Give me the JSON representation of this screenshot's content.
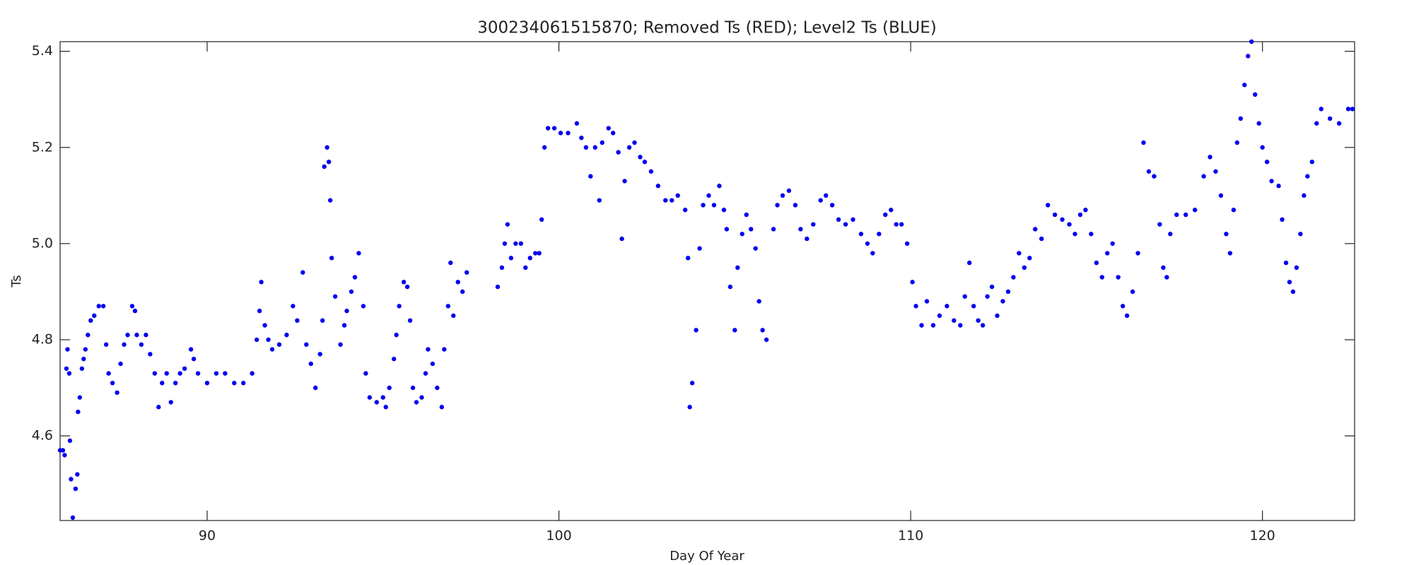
{
  "chart_data": {
    "type": "scatter",
    "title": "300234061515870; Removed Ts (RED); Level2 Ts (BLUE)",
    "x_label": "Day Of Year",
    "y_label": "Ts",
    "color": "#0000ee",
    "xlim": [
      85.82,
      122.62
    ],
    "ylim": [
      4.424,
      5.42
    ],
    "xticks": [
      90,
      100,
      110,
      120
    ],
    "yticks": [
      4.6,
      4.8,
      {
        "value": 5,
        "label": "5.0"
      },
      5.2,
      5.4
    ],
    "x": [
      85.82,
      85.9,
      85.95,
      86.0,
      86.03,
      86.08,
      86.1,
      86.13,
      86.18,
      86.26,
      86.31,
      86.33,
      86.38,
      86.44,
      86.49,
      86.54,
      86.61,
      86.69,
      86.79,
      86.92,
      87.05,
      87.13,
      87.2,
      87.31,
      87.44,
      87.54,
      87.64,
      87.74,
      87.87,
      87.95,
      88.0,
      88.13,
      88.26,
      88.38,
      88.51,
      88.62,
      88.72,
      88.85,
      88.97,
      89.1,
      89.23,
      89.36,
      89.54,
      89.62,
      89.74,
      90.0,
      90.26,
      90.51,
      90.77,
      91.03,
      91.28,
      91.41,
      91.49,
      91.54,
      91.64,
      91.74,
      91.85,
      92.05,
      92.26,
      92.44,
      92.56,
      92.72,
      92.82,
      92.95,
      93.08,
      93.21,
      93.28,
      93.33,
      93.41,
      93.46,
      93.5,
      93.54,
      93.64,
      93.79,
      93.9,
      93.97,
      94.1,
      94.2,
      94.31,
      94.44,
      94.51,
      94.62,
      94.82,
      95.0,
      95.08,
      95.18,
      95.31,
      95.38,
      95.46,
      95.59,
      95.69,
      95.77,
      95.85,
      95.95,
      96.1,
      96.21,
      96.28,
      96.41,
      96.54,
      96.67,
      96.74,
      96.85,
      96.92,
      97.0,
      97.13,
      97.26,
      97.38,
      98.26,
      98.38,
      98.46,
      98.54,
      98.64,
      98.77,
      98.92,
      99.05,
      99.18,
      99.33,
      99.44,
      99.51,
      99.59,
      99.69,
      99.87,
      100.05,
      100.26,
      100.51,
      100.64,
      100.77,
      100.9,
      101.03,
      101.15,
      101.23,
      101.41,
      101.54,
      101.69,
      101.79,
      101.87,
      102.0,
      102.15,
      102.31,
      102.44,
      102.62,
      102.82,
      103.03,
      103.21,
      103.38,
      103.59,
      103.67,
      103.72,
      103.79,
      103.9,
      104.0,
      104.1,
      104.26,
      104.41,
      104.56,
      104.69,
      104.77,
      104.87,
      105.0,
      105.08,
      105.21,
      105.33,
      105.46,
      105.59,
      105.69,
      105.79,
      105.9,
      106.1,
      106.21,
      106.36,
      106.54,
      106.72,
      106.87,
      107.05,
      107.23,
      107.44,
      107.59,
      107.77,
      107.95,
      108.15,
      108.36,
      108.59,
      108.77,
      108.92,
      109.1,
      109.28,
      109.44,
      109.59,
      109.74,
      109.9,
      110.05,
      110.15,
      110.31,
      110.46,
      110.64,
      110.82,
      111.03,
      111.23,
      111.41,
      111.54,
      111.67,
      111.79,
      111.92,
      112.05,
      112.18,
      112.31,
      112.46,
      112.62,
      112.77,
      112.92,
      113.08,
      113.23,
      113.38,
      113.54,
      113.72,
      113.9,
      114.1,
      114.31,
      114.51,
      114.67,
      114.82,
      114.97,
      115.13,
      115.28,
      115.44,
      115.59,
      115.74,
      115.9,
      116.03,
      116.15,
      116.31,
      116.46,
      116.62,
      116.77,
      116.92,
      117.08,
      117.18,
      117.28,
      117.38,
      117.56,
      117.82,
      118.08,
      118.33,
      118.51,
      118.67,
      118.82,
      118.97,
      119.08,
      119.18,
      119.28,
      119.38,
      119.49,
      119.59,
      119.69,
      119.79,
      119.9,
      120.0,
      120.13,
      120.26,
      120.46,
      120.56,
      120.67,
      120.77,
      120.87,
      120.97,
      121.08,
      121.18,
      121.28,
      121.41,
      121.54,
      121.67,
      121.92,
      122.18,
      122.44,
      122.56
    ],
    "y": [
      4.57,
      4.57,
      4.56,
      4.74,
      4.78,
      4.73,
      4.59,
      4.51,
      4.43,
      4.49,
      4.52,
      4.65,
      4.68,
      4.74,
      4.76,
      4.78,
      4.81,
      4.84,
      4.85,
      4.87,
      4.87,
      4.79,
      4.73,
      4.71,
      4.69,
      4.75,
      4.79,
      4.81,
      4.87,
      4.86,
      4.81,
      4.79,
      4.81,
      4.77,
      4.73,
      4.66,
      4.71,
      4.73,
      4.67,
      4.71,
      4.73,
      4.74,
      4.78,
      4.76,
      4.73,
      4.71,
      4.73,
      4.73,
      4.71,
      4.71,
      4.73,
      4.8,
      4.86,
      4.92,
      4.83,
      4.8,
      4.78,
      4.79,
      4.81,
      4.87,
      4.84,
      4.94,
      4.79,
      4.75,
      4.7,
      4.77,
      4.84,
      5.16,
      5.2,
      5.17,
      5.09,
      4.97,
      4.89,
      4.79,
      4.83,
      4.86,
      4.9,
      4.93,
      4.98,
      4.87,
      4.73,
      4.68,
      4.67,
      4.68,
      4.66,
      4.7,
      4.76,
      4.81,
      4.87,
      4.92,
      4.91,
      4.84,
      4.7,
      4.67,
      4.68,
      4.73,
      4.78,
      4.75,
      4.7,
      4.66,
      4.78,
      4.87,
      4.96,
      4.85,
      4.92,
      4.9,
      4.94,
      4.91,
      4.95,
      5.0,
      5.04,
      4.97,
      5.0,
      5.0,
      4.95,
      4.97,
      4.98,
      4.98,
      5.05,
      5.2,
      5.24,
      5.24,
      5.23,
      5.23,
      5.25,
      5.22,
      5.2,
      5.14,
      5.2,
      5.09,
      5.21,
      5.24,
      5.23,
      5.19,
      5.01,
      5.13,
      5.2,
      5.21,
      5.18,
      5.17,
      5.15,
      5.12,
      5.09,
      5.09,
      5.1,
      5.07,
      4.97,
      4.66,
      4.71,
      4.82,
      4.99,
      5.08,
      5.1,
      5.08,
      5.12,
      5.07,
      5.03,
      4.91,
      4.82,
      4.95,
      5.02,
      5.06,
      5.03,
      4.99,
      4.88,
      4.82,
      4.8,
      5.03,
      5.08,
      5.1,
      5.11,
      5.08,
      5.03,
      5.01,
      5.04,
      5.09,
      5.1,
      5.08,
      5.05,
      5.04,
      5.05,
      5.02,
      5.0,
      4.98,
      5.02,
      5.06,
      5.07,
      5.04,
      5.04,
      5.0,
      4.92,
      4.87,
      4.83,
      4.88,
      4.83,
      4.85,
      4.87,
      4.84,
      4.83,
      4.89,
      4.96,
      4.87,
      4.84,
      4.83,
      4.89,
      4.91,
      4.85,
      4.88,
      4.9,
      4.93,
      4.98,
      4.95,
      4.97,
      5.03,
      5.01,
      5.08,
      5.06,
      5.05,
      5.04,
      5.02,
      5.06,
      5.07,
      5.02,
      4.96,
      4.93,
      4.98,
      5.0,
      4.93,
      4.87,
      4.85,
      4.9,
      4.98,
      5.21,
      5.15,
      5.14,
      5.04,
      4.95,
      4.93,
      5.02,
      5.06,
      5.06,
      5.07,
      5.14,
      5.18,
      5.15,
      5.1,
      5.02,
      4.98,
      5.07,
      5.21,
      5.26,
      5.33,
      5.39,
      5.42,
      5.31,
      5.25,
      5.2,
      5.17,
      5.13,
      5.12,
      5.05,
      4.96,
      4.92,
      4.9,
      4.95,
      5.02,
      5.1,
      5.14,
      5.17,
      5.25,
      5.28,
      5.26,
      5.25,
      5.28,
      5.28
    ]
  }
}
